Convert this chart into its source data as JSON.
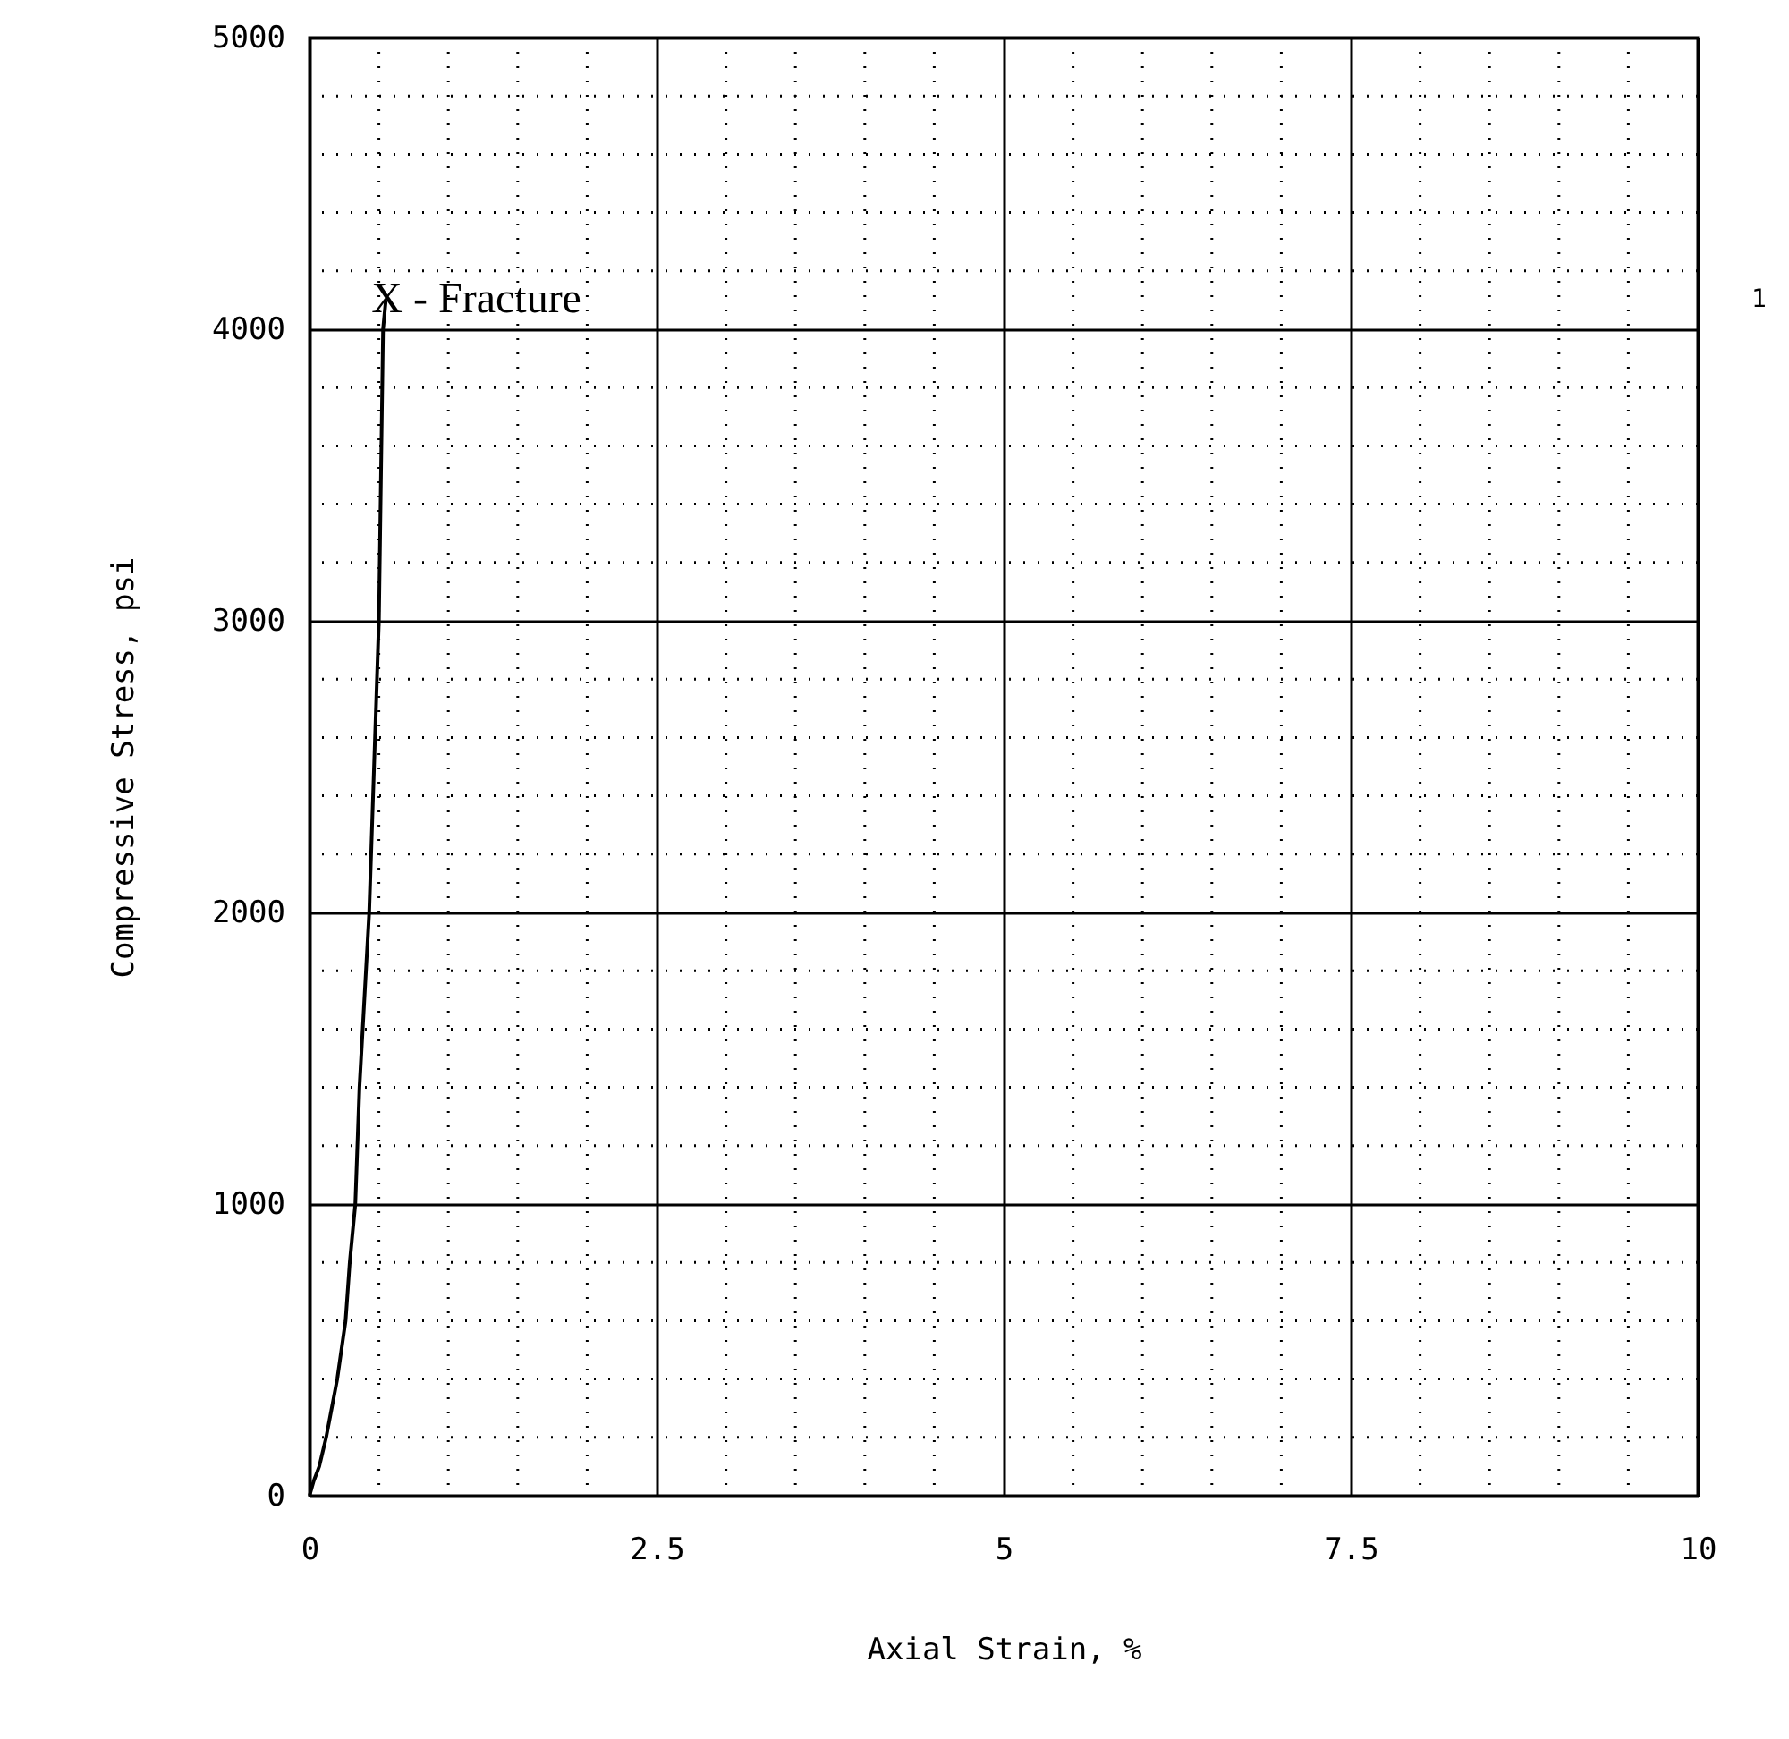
{
  "chart_data": {
    "type": "line",
    "xlabel": "Axial Strain, %",
    "ylabel": "Compressive Stress, psi",
    "x": [
      0,
      0.03,
      0.07,
      0.12,
      0.2,
      0.26,
      0.29,
      0.33,
      0.36,
      0.43,
      0.5,
      0.53,
      0.55
    ],
    "series": [
      {
        "color": "#000000",
        "values": [
          0,
          50,
          100,
          200,
          400,
          600,
          800,
          1000,
          1400,
          2000,
          3000,
          4000,
          4100
        ]
      }
    ],
    "xlim": [
      0,
      10
    ],
    "xticks": [
      0,
      2.5,
      5,
      7.5,
      10
    ],
    "ylim": [
      0,
      5000
    ],
    "yticks": [
      0,
      1000,
      2000,
      3000,
      4000,
      5000
    ],
    "grid": true,
    "line_style": "solid",
    "annotations": [
      {
        "text": "X - Fracture",
        "x": 0.55,
        "y": 4100
      },
      "1"
    ]
  }
}
